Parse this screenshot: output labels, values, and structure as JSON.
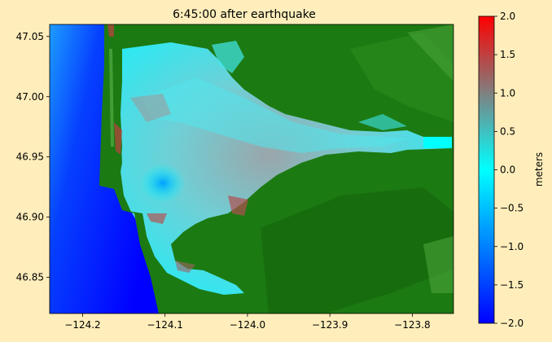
{
  "chart_data": {
    "type": "heatmap",
    "title": "6:45:00 after earthquake",
    "xlim": [
      -124.24,
      -123.75
    ],
    "ylim": [
      46.82,
      47.06
    ],
    "xticks": [
      -124.2,
      -124.1,
      -124.0,
      -123.9,
      -123.8
    ],
    "xtick_labels": [
      "−124.2",
      "−124.1",
      "−124.0",
      "−123.9",
      "−123.8"
    ],
    "yticks": [
      46.85,
      46.9,
      46.95,
      47.0,
      47.05
    ],
    "ytick_labels": [
      "46.85",
      "46.90",
      "46.95",
      "47.00",
      "47.05"
    ],
    "colorbar": {
      "label": "meters",
      "range": [
        -2.0,
        2.0
      ],
      "ticks": [
        2.0,
        1.5,
        1.0,
        0.5,
        0.0,
        -0.5,
        -1.0,
        -1.5,
        -2.0
      ],
      "tick_labels": [
        "2.0",
        "1.5",
        "1.0",
        "0.5",
        "0.0",
        "−0.5",
        "−1.0",
        "−1.5",
        "−2.0"
      ],
      "colors": [
        "#0000ff",
        "#00ffff",
        "#ff0000"
      ]
    },
    "surface": {
      "ocean_color": "#0a10f0",
      "bay_color": "#48e2e6",
      "land_color": "#1c7a12",
      "land_light": "#4ea83e",
      "land_dark": "#0f5508"
    }
  }
}
